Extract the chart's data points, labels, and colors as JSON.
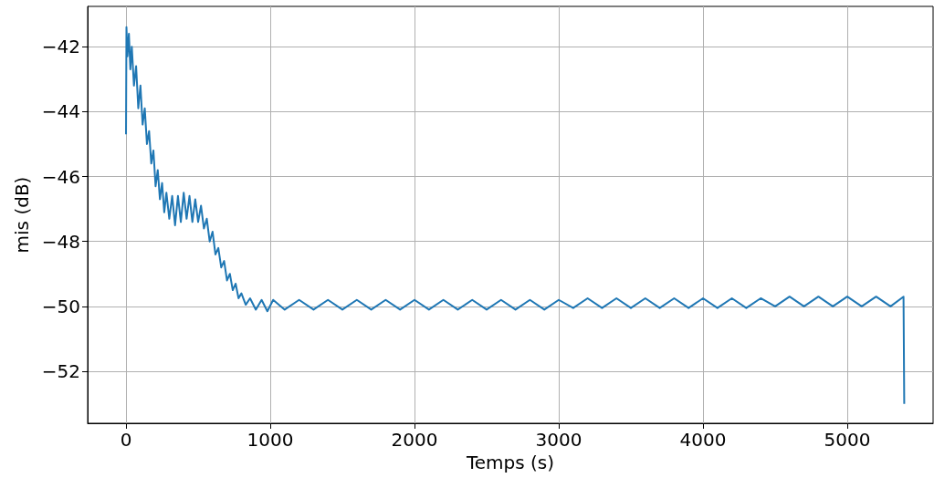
{
  "chart_data": {
    "type": "line",
    "xlabel": "Temps (s)",
    "ylabel": "mis (dB)",
    "xlim": [
      -266,
      5595
    ],
    "ylim": [
      -53.6,
      -40.76
    ],
    "xticks": [
      0,
      1000,
      2000,
      3000,
      4000,
      5000
    ],
    "yticks": [
      -52,
      -50,
      -48,
      -46,
      -44,
      -42
    ],
    "grid": true,
    "marker": "none",
    "line_style": "solid",
    "series": [
      {
        "color": "#1f77b4",
        "x": [
          0,
          3,
          10,
          20,
          30,
          40,
          55,
          70,
          85,
          100,
          115,
          130,
          145,
          160,
          175,
          190,
          205,
          220,
          235,
          250,
          265,
          280,
          300,
          320,
          340,
          360,
          380,
          400,
          420,
          440,
          460,
          480,
          500,
          520,
          540,
          560,
          580,
          600,
          620,
          640,
          660,
          680,
          700,
          720,
          740,
          760,
          780,
          800,
          830,
          860,
          900,
          940,
          980,
          1020,
          1100,
          1200,
          1300,
          1400,
          1500,
          1600,
          1700,
          1800,
          1900,
          2000,
          2100,
          2200,
          2300,
          2400,
          2500,
          2600,
          2700,
          2800,
          2900,
          3000,
          3100,
          3200,
          3300,
          3400,
          3500,
          3600,
          3700,
          3800,
          3900,
          4000,
          4100,
          4200,
          4300,
          4400,
          4500,
          4600,
          4700,
          4800,
          4900,
          5000,
          5100,
          5200,
          5300,
          5390,
          5395
        ],
        "values": [
          -44.7,
          -41.4,
          -42.3,
          -41.6,
          -42.7,
          -42.0,
          -43.2,
          -42.6,
          -43.9,
          -43.2,
          -44.4,
          -43.9,
          -45.0,
          -44.6,
          -45.6,
          -45.2,
          -46.3,
          -45.8,
          -46.7,
          -46.2,
          -47.1,
          -46.5,
          -47.3,
          -46.6,
          -47.5,
          -46.6,
          -47.4,
          -46.5,
          -47.3,
          -46.6,
          -47.4,
          -46.7,
          -47.4,
          -46.9,
          -47.6,
          -47.3,
          -48.0,
          -47.7,
          -48.4,
          -48.2,
          -48.8,
          -48.6,
          -49.2,
          -49.0,
          -49.5,
          -49.3,
          -49.75,
          -49.6,
          -49.95,
          -49.75,
          -50.1,
          -49.8,
          -50.15,
          -49.8,
          -50.1,
          -49.8,
          -50.1,
          -49.8,
          -50.1,
          -49.8,
          -50.1,
          -49.8,
          -50.1,
          -49.8,
          -50.1,
          -49.8,
          -50.1,
          -49.8,
          -50.1,
          -49.8,
          -50.1,
          -49.8,
          -50.1,
          -49.8,
          -50.05,
          -49.75,
          -50.05,
          -49.75,
          -50.05,
          -49.75,
          -50.05,
          -49.75,
          -50.05,
          -49.75,
          -50.05,
          -49.75,
          -50.05,
          -49.75,
          -50.0,
          -49.7,
          -50.0,
          -49.7,
          -50.0,
          -49.7,
          -50.0,
          -49.7,
          -50.0,
          -49.7,
          -53.0
        ]
      }
    ]
  }
}
